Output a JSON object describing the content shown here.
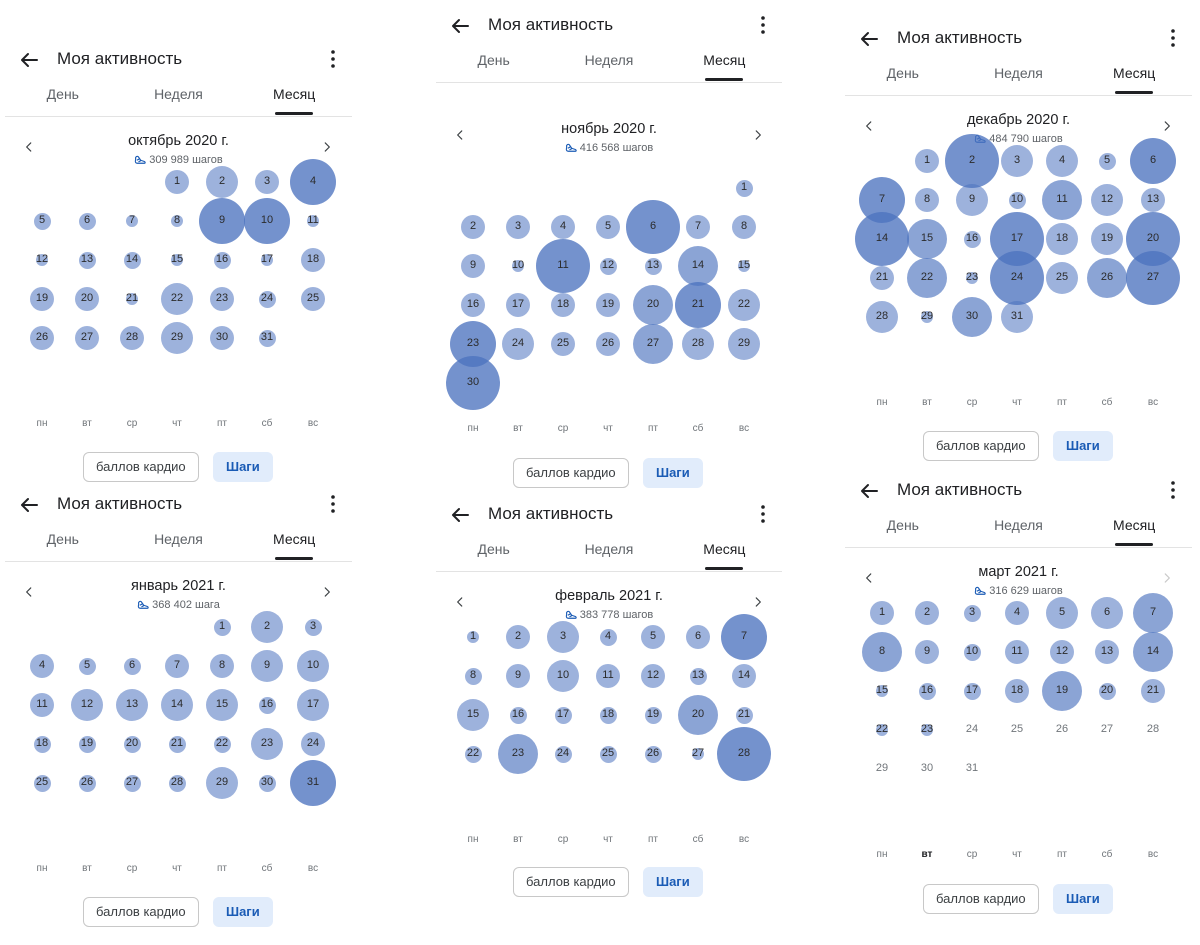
{
  "common": {
    "title": "Моя активность",
    "tabs": [
      "День",
      "Неделя",
      "Месяц"
    ],
    "weekdays": [
      "пн",
      "вт",
      "ср",
      "чт",
      "пт",
      "сб",
      "вс"
    ],
    "button_cardio": "баллов кардио",
    "button_steps": "Шаги",
    "accent_color": "#4d73bf"
  },
  "months": [
    {
      "month_label": "октябрь 2020 г.",
      "steps_label": "309 989 шагов",
      "start_weekday": 4,
      "days": 31,
      "steps_level": [
        2,
        3,
        2,
        5,
        1,
        1,
        0,
        0,
        5,
        5,
        0,
        0,
        1,
        1,
        0,
        1,
        0,
        2,
        2,
        2,
        0,
        3,
        2,
        1,
        2,
        2,
        2,
        2,
        3,
        2,
        1
      ],
      "next_disabled": false
    },
    {
      "month_label": "ноябрь 2020 г.",
      "steps_label": "416 568 шагов",
      "start_weekday": 7,
      "days": 30,
      "steps_level": [
        1,
        2,
        2,
        2,
        2,
        6,
        2,
        2,
        2,
        0,
        6,
        1,
        1,
        4,
        0,
        2,
        2,
        2,
        2,
        4,
        5,
        3,
        5,
        3,
        2,
        2,
        4,
        3,
        3,
        6
      ],
      "next_disabled": false
    },
    {
      "month_label": "декабрь 2020 г.",
      "steps_label": "484 790 шагов",
      "start_weekday": 2,
      "days": 31,
      "steps_level": [
        2,
        6,
        3,
        3,
        1,
        5,
        5,
        2,
        3,
        1,
        4,
        3,
        2,
        6,
        4,
        1,
        6,
        3,
        3,
        6,
        2,
        4,
        0,
        6,
        3,
        4,
        6,
        3,
        0,
        4,
        3
      ],
      "next_disabled": false
    },
    {
      "month_label": "январь 2021 г.",
      "steps_label": "368 402 шага",
      "start_weekday": 5,
      "days": 31,
      "steps_level": [
        1,
        3,
        1,
        2,
        1,
        1,
        2,
        2,
        3,
        3,
        2,
        3,
        3,
        3,
        3,
        1,
        3,
        1,
        1,
        1,
        1,
        1,
        3,
        2,
        1,
        1,
        1,
        1,
        3,
        1,
        5
      ],
      "next_disabled": false
    },
    {
      "month_label": "февраль 2021 г.",
      "steps_label": "383 778 шагов",
      "start_weekday": 1,
      "days": 28,
      "steps_level": [
        0,
        2,
        3,
        1,
        2,
        2,
        5,
        1,
        2,
        3,
        2,
        2,
        1,
        2,
        3,
        1,
        1,
        1,
        1,
        4,
        1,
        1,
        4,
        1,
        1,
        1,
        0,
        6
      ],
      "next_disabled": false
    },
    {
      "month_label": "март 2021 г.",
      "steps_label": "316 629 шагов",
      "start_weekday": 1,
      "days": 31,
      "steps_level": [
        2,
        2,
        1,
        2,
        3,
        3,
        4,
        4,
        2,
        1,
        2,
        2,
        2,
        4,
        0,
        1,
        1,
        2,
        4,
        1,
        2,
        0,
        0,
        -1,
        -1,
        -1,
        -1,
        -1,
        -1,
        -1,
        -1
      ],
      "next_disabled": true,
      "bold_weekday": 1
    }
  ]
}
